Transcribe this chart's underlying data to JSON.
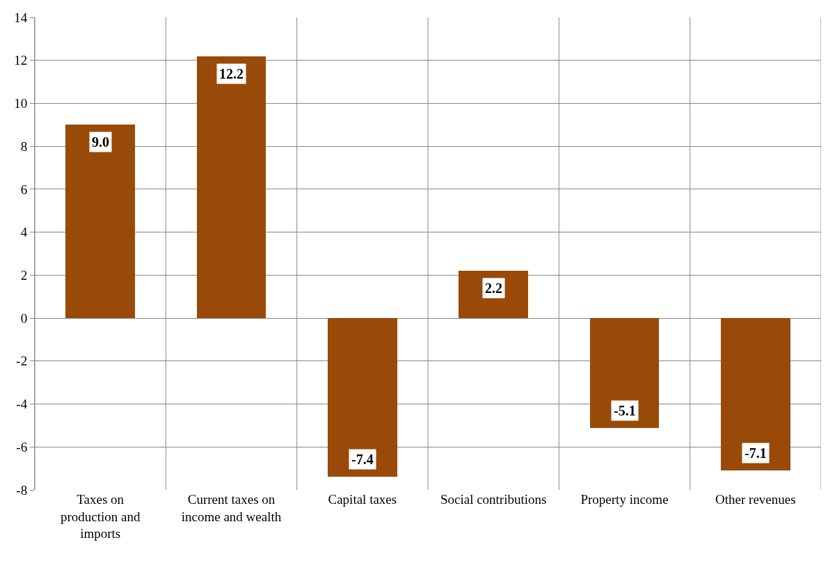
{
  "chart_data": {
    "type": "bar",
    "categories": [
      "Taxes on\nproduction and\nimports",
      "Current taxes on\nincome and wealth",
      "Capital taxes",
      "Social contributions",
      "Property income",
      "Other revenues"
    ],
    "values": [
      9.0,
      12.2,
      -7.4,
      2.2,
      -5.1,
      -7.1
    ],
    "value_labels": [
      "9.0",
      "12.2",
      "-7.4",
      "2.2",
      "-5.1",
      "-7.1"
    ],
    "color": "#994a09",
    "ylim": [
      -8,
      14
    ],
    "yticks": [
      -8,
      -6,
      -4,
      -2,
      0,
      2,
      4,
      6,
      8,
      10,
      12,
      14
    ],
    "grid": true,
    "legend": false
  }
}
